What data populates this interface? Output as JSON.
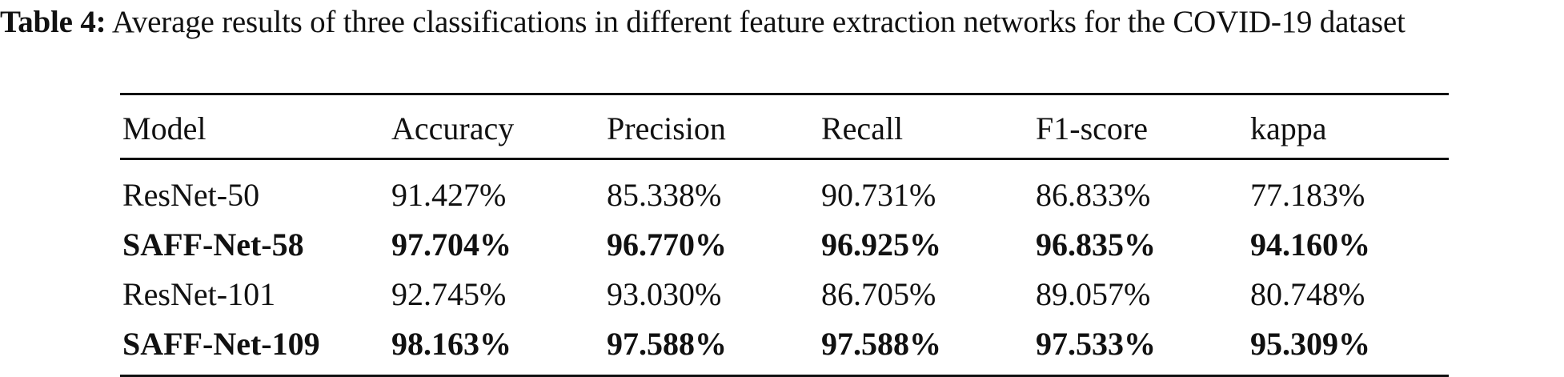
{
  "caption": {
    "label": "Table 4:",
    "text": "Average results of three classifications in different feature extraction networks for the COVID-19 dataset"
  },
  "table": {
    "headers": [
      "Model",
      "Accuracy",
      "Precision",
      "Recall",
      "F1-score",
      "kappa"
    ],
    "rows": [
      {
        "model": "ResNet-50",
        "accuracy": "91.427%",
        "precision": "85.338%",
        "recall": "90.731%",
        "f1": "86.833%",
        "kappa": "77.183%",
        "bold": false
      },
      {
        "model": "SAFF-Net-58",
        "accuracy": "97.704%",
        "precision": "96.770%",
        "recall": "96.925%",
        "f1": "96.835%",
        "kappa": "94.160%",
        "bold": true
      },
      {
        "model": "ResNet-101",
        "accuracy": "92.745%",
        "precision": "93.030%",
        "recall": "86.705%",
        "f1": "89.057%",
        "kappa": "80.748%",
        "bold": false
      },
      {
        "model": "SAFF-Net-109",
        "accuracy": "98.163%",
        "precision": "97.588%",
        "recall": "97.588%",
        "f1": "97.533%",
        "kappa": "95.309%",
        "bold": true
      }
    ]
  }
}
